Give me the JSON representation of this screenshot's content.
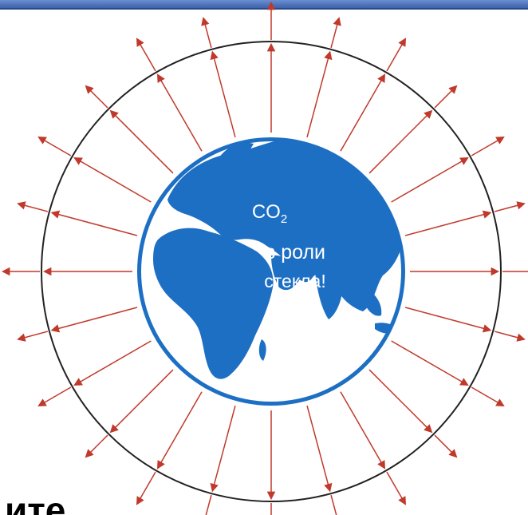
{
  "label": {
    "line1": "CO",
    "line1_sub": "2",
    "line2": "в роли",
    "line3": "стекла!"
  },
  "bottom_text": "ите",
  "colors": {
    "top_bar": "#4a6fb4",
    "top_bar_edge": "#2b4a8c",
    "land": "#1d6fc4",
    "ocean": "#ffffff",
    "globe_outline": "#1d6fc4",
    "atmosphere": "#222222",
    "arrows": "#c0392b"
  },
  "icons": {
    "globe": "globe-icon",
    "arrow": "arrow-icon"
  }
}
